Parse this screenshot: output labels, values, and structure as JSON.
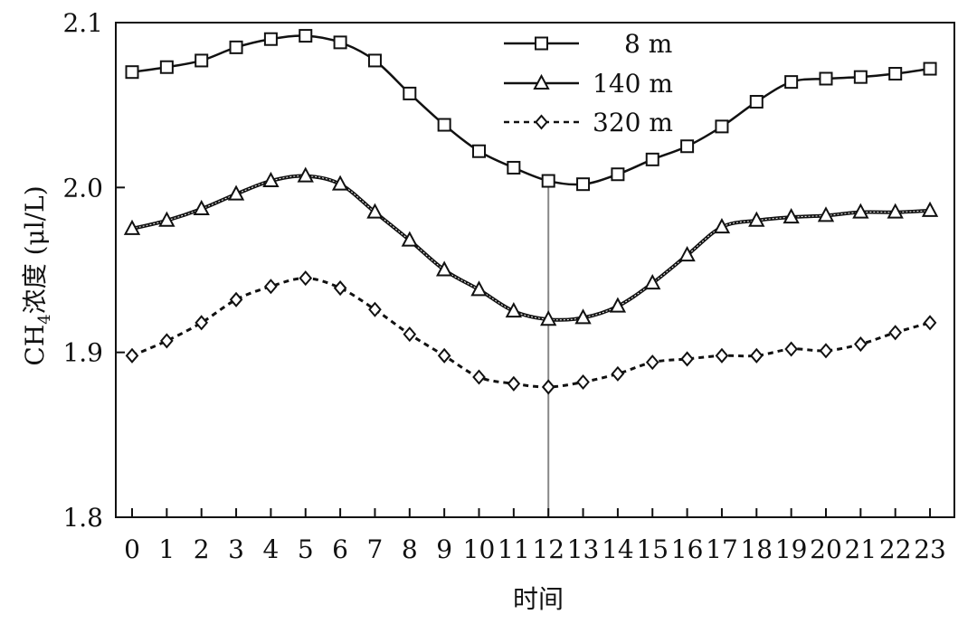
{
  "chart_data": {
    "type": "line",
    "xlabel": "时间",
    "ylabel": {
      "prefix": "CH",
      "sub": "4",
      "suffix": "浓度 (μl/L)"
    },
    "ylim": [
      1.8,
      2.1
    ],
    "yticks": [
      "1.8",
      "1.9",
      "2.0",
      "2.1"
    ],
    "ytick_values": [
      1.8,
      1.9,
      2.0,
      2.1
    ],
    "x": [
      0,
      1,
      2,
      3,
      4,
      5,
      6,
      7,
      8,
      9,
      10,
      11,
      12,
      13,
      14,
      15,
      16,
      17,
      18,
      19,
      20,
      21,
      22,
      23
    ],
    "xtick_labels": [
      "0",
      "1",
      "2",
      "3",
      "4",
      "5",
      "6",
      "7",
      "8",
      "9",
      "10",
      "11",
      "12",
      "13",
      "14",
      "15",
      "16",
      "17",
      "18",
      "19",
      "20",
      "21",
      "22",
      "23"
    ],
    "legend_position": "top-center",
    "reference_line_x": 12,
    "series": [
      {
        "name": "8 m",
        "marker": "square",
        "line": "solid",
        "values": [
          2.07,
          2.073,
          2.077,
          2.085,
          2.09,
          2.092,
          2.088,
          2.077,
          2.057,
          2.038,
          2.022,
          2.012,
          2.004,
          2.002,
          2.008,
          2.017,
          2.025,
          2.037,
          2.052,
          2.064,
          2.066,
          2.067,
          2.069,
          2.072
        ]
      },
      {
        "name": "140 m",
        "marker": "triangle",
        "line": "solid",
        "values": [
          1.975,
          1.98,
          1.987,
          1.996,
          2.004,
          2.007,
          2.002,
          1.985,
          1.968,
          1.95,
          1.938,
          1.925,
          1.92,
          1.921,
          1.928,
          1.942,
          1.959,
          1.976,
          1.98,
          1.982,
          1.983,
          1.985,
          1.985,
          1.986
        ]
      },
      {
        "name": "320 m",
        "marker": "diamond",
        "line": "dotted",
        "values": [
          1.898,
          1.907,
          1.918,
          1.932,
          1.94,
          1.945,
          1.939,
          1.926,
          1.911,
          1.898,
          1.885,
          1.881,
          1.879,
          1.882,
          1.887,
          1.894,
          1.896,
          1.898,
          1.898,
          1.902,
          1.901,
          1.905,
          1.912,
          1.918
        ]
      }
    ]
  }
}
